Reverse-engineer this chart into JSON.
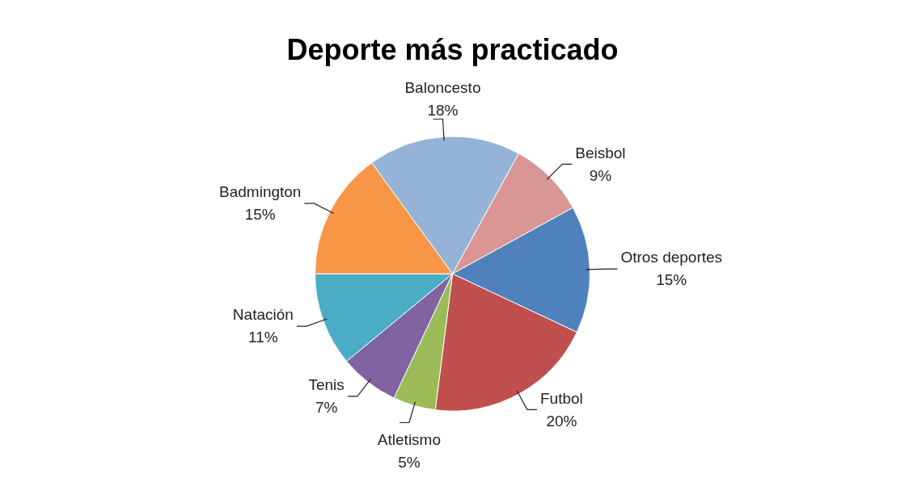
{
  "chart_data": {
    "type": "pie",
    "title": "Deporte más practicado",
    "categories": [
      "Baloncesto",
      "Beisbol",
      "Otros deportes",
      "Futbol",
      "Atletismo",
      "Tenis",
      "Natación",
      "Badmington"
    ],
    "values": [
      18,
      9,
      15,
      20,
      5,
      7,
      11,
      15
    ],
    "value_labels": [
      "18%",
      "9%",
      "15%",
      "20%",
      "5%",
      "7%",
      "11%",
      "15%"
    ],
    "colors": [
      "#95b3d7",
      "#d99694",
      "#4f81bd",
      "#c0504d",
      "#9bbb59",
      "#8064a2",
      "#4bacc6",
      "#f79646"
    ],
    "legend": false
  }
}
